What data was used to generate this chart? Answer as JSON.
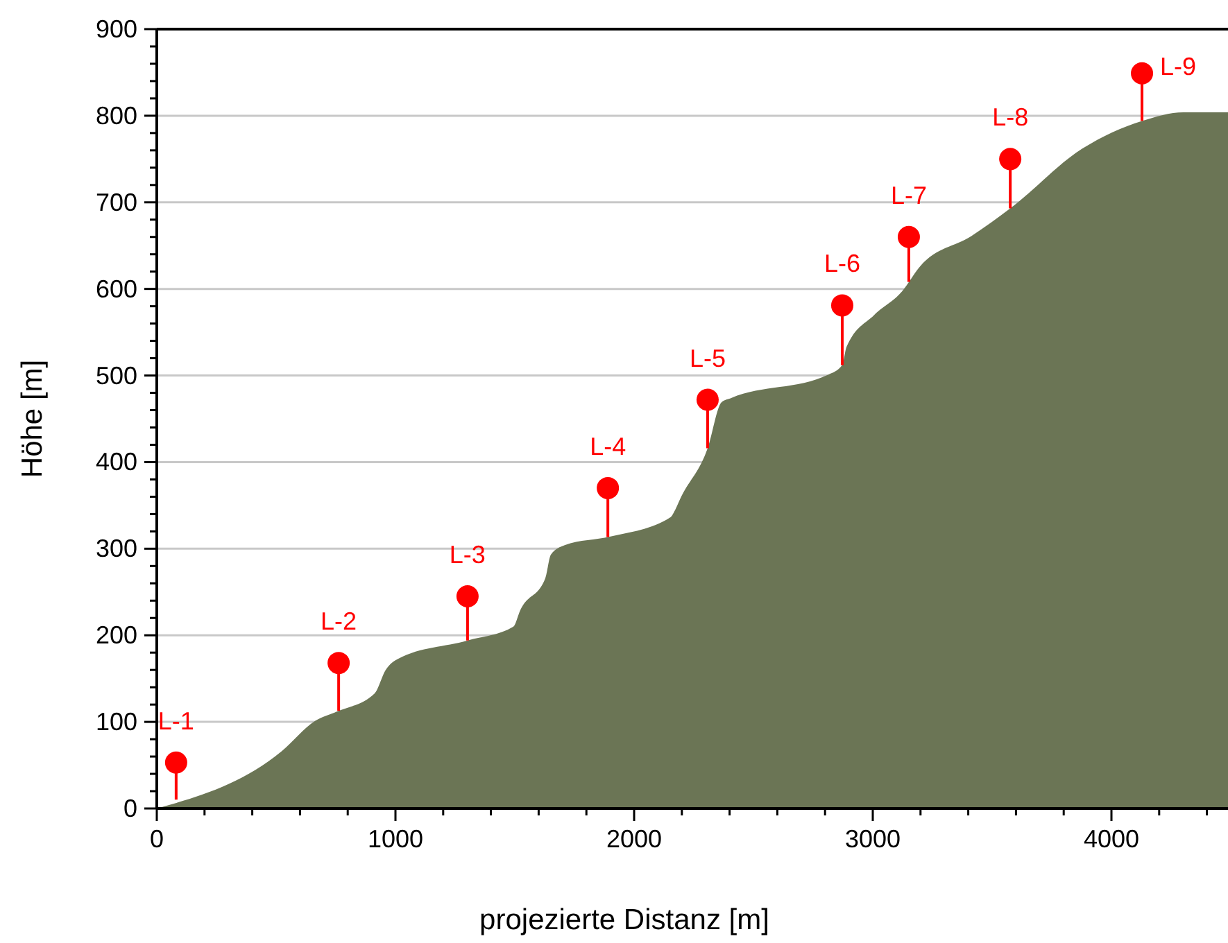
{
  "chart_data": {
    "type": "area",
    "xlabel": "projezierte Distanz [m]",
    "ylabel": "Höhe [m]",
    "xlim": [
      0,
      4500
    ],
    "ylim": [
      0,
      900
    ],
    "xticks": [
      0,
      {
        "value": 200,
        "label": null
      },
      {
        "value": 400,
        "label": null
      },
      {
        "value": 600,
        "label": null
      },
      {
        "value": 800,
        "label": null
      },
      1000,
      {
        "value": 1200,
        "label": null
      },
      {
        "value": 1400,
        "label": null
      },
      {
        "value": 1600,
        "label": null
      },
      {
        "value": 1800,
        "label": null
      },
      2000,
      {
        "value": 2200,
        "label": null
      },
      {
        "value": 2400,
        "label": null
      },
      {
        "value": 2600,
        "label": null
      },
      {
        "value": 2800,
        "label": null
      },
      3000,
      {
        "value": 3200,
        "label": null
      },
      {
        "value": 3400,
        "label": null
      },
      {
        "value": 3600,
        "label": null
      },
      {
        "value": 3800,
        "label": null
      },
      4000,
      {
        "value": 4200,
        "label": null
      },
      {
        "value": 4400,
        "label": null
      }
    ],
    "yticks": [
      0,
      {
        "value": 20,
        "label": null
      },
      {
        "value": 40,
        "label": null
      },
      {
        "value": 60,
        "label": null
      },
      {
        "value": 80,
        "label": null
      },
      100,
      {
        "value": 120,
        "label": null
      },
      {
        "value": 140,
        "label": null
      },
      {
        "value": 160,
        "label": null
      },
      {
        "value": 180,
        "label": null
      },
      200,
      {
        "value": 220,
        "label": null
      },
      {
        "value": 240,
        "label": null
      },
      {
        "value": 260,
        "label": null
      },
      {
        "value": 280,
        "label": null
      },
      300,
      {
        "value": 320,
        "label": null
      },
      {
        "value": 340,
        "label": null
      },
      {
        "value": 360,
        "label": null
      },
      {
        "value": 380,
        "label": null
      },
      400,
      {
        "value": 420,
        "label": null
      },
      {
        "value": 440,
        "label": null
      },
      {
        "value": 460,
        "label": null
      },
      {
        "value": 480,
        "label": null
      },
      500,
      {
        "value": 520,
        "label": null
      },
      {
        "value": 540,
        "label": null
      },
      {
        "value": 560,
        "label": null
      },
      {
        "value": 580,
        "label": null
      },
      600,
      {
        "value": 620,
        "label": null
      },
      {
        "value": 640,
        "label": null
      },
      {
        "value": 660,
        "label": null
      },
      {
        "value": 680,
        "label": null
      },
      700,
      {
        "value": 720,
        "label": null
      },
      {
        "value": 740,
        "label": null
      },
      {
        "value": 760,
        "label": null
      },
      {
        "value": 780,
        "label": null
      },
      800,
      {
        "value": 820,
        "label": null
      },
      {
        "value": 840,
        "label": null
      },
      {
        "value": 860,
        "label": null
      },
      {
        "value": 880,
        "label": null
      },
      900
    ],
    "grid": "y",
    "series": [
      {
        "color": "#6b7555",
        "x": [
          0,
          523,
          663,
          756,
          913,
          959,
          1012,
          1302,
          1494,
          1523,
          1628,
          1651,
          1709,
          1901,
          2151,
          2174,
          2192,
          2308,
          2366,
          2407,
          2814,
          2872,
          2890,
          3006,
          3122,
          3198,
          3413,
          3576,
          3878,
          4128,
          4302,
          4500
        ],
        "values": [
          0,
          66,
          101,
          112,
          133,
          160,
          173,
          194,
          210,
          229,
          266,
          293,
          304,
          314,
          336,
          346,
          357,
          416,
          469,
          474,
          501,
          512,
          533,
          570,
          597,
          626,
          661,
          693,
          762,
          794,
          804,
          804
        ]
      },
      {
        "type": "scatter",
        "color": "#ff0000",
        "marker": "circle",
        "x": [
          81,
          762,
          1302,
          1890,
          2308,
          2872,
          3151,
          3576,
          4128
        ],
        "values": [
          53,
          168,
          245,
          370,
          472,
          581,
          660,
          750,
          849
        ]
      }
    ],
    "annotations": [
      {
        "text": "L-1",
        "x": 81,
        "y": 53
      },
      {
        "text": "L-2",
        "x": 762,
        "y": 168
      },
      {
        "text": "L-3",
        "x": 1302,
        "y": 245
      },
      {
        "text": "L-4",
        "x": 1890,
        "y": 370
      },
      {
        "text": "L-5",
        "x": 2308,
        "y": 472
      },
      {
        "text": "L-6",
        "x": 2872,
        "y": 581
      },
      {
        "text": "L-7",
        "x": 3151,
        "y": 660
      },
      {
        "text": "L-8",
        "x": 3576,
        "y": 750
      },
      {
        "text": "L-9",
        "x": 4128,
        "y": 849
      }
    ]
  }
}
